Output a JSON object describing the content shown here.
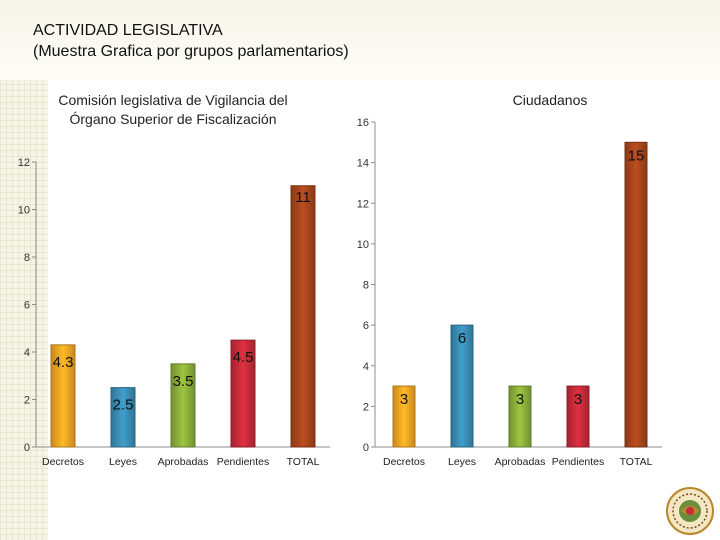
{
  "slide": {
    "title_line1": "ACTIVIDAD LEGISLATIVA",
    "title_line2": "(Muestra Grafica por grupos parlamentarios)"
  },
  "chart_data": [
    {
      "type": "bar",
      "title": "Comisión legislativa de Vigilancia del Órgano Superior de Fiscalización",
      "categories": [
        "Decretos",
        "Leyes",
        "Aprobadas",
        "Pendientes",
        "TOTAL"
      ],
      "values": [
        4.3,
        2.5,
        3.5,
        4.5,
        11
      ],
      "data_labels": [
        "4.3",
        "2.5",
        "3.5",
        "4.5",
        "11"
      ],
      "colors": [
        "#f5a623",
        "#3a8db5",
        "#8cb03a",
        "#c82b3b",
        "#a8461c"
      ],
      "ylim": [
        0,
        12
      ],
      "yticks": [
        0,
        2,
        4,
        6,
        8,
        10,
        12
      ],
      "ytick_labels": [
        "0",
        "2",
        "4",
        "6",
        "8",
        "10",
        "12"
      ],
      "xlabel": "",
      "ylabel": "",
      "grid": false
    },
    {
      "type": "bar",
      "title": "Ciudadanos",
      "categories": [
        "Decretos",
        "Leyes",
        "Aprobadas",
        "Pendientes",
        "TOTAL"
      ],
      "values": [
        3,
        6,
        3,
        3,
        15
      ],
      "data_labels": [
        "3",
        "6",
        "3",
        "3",
        "15"
      ],
      "colors": [
        "#f5a623",
        "#3a8db5",
        "#8cb03a",
        "#c82b3b",
        "#a8461c"
      ],
      "ylim": [
        0,
        16
      ],
      "yticks": [
        0,
        2,
        4,
        6,
        8,
        10,
        12,
        14,
        16
      ],
      "ytick_labels": [
        "0",
        "2",
        "4",
        "6",
        "8",
        "10",
        "12",
        "14",
        "16"
      ],
      "xlabel": "",
      "ylabel": "",
      "grid": false
    }
  ]
}
